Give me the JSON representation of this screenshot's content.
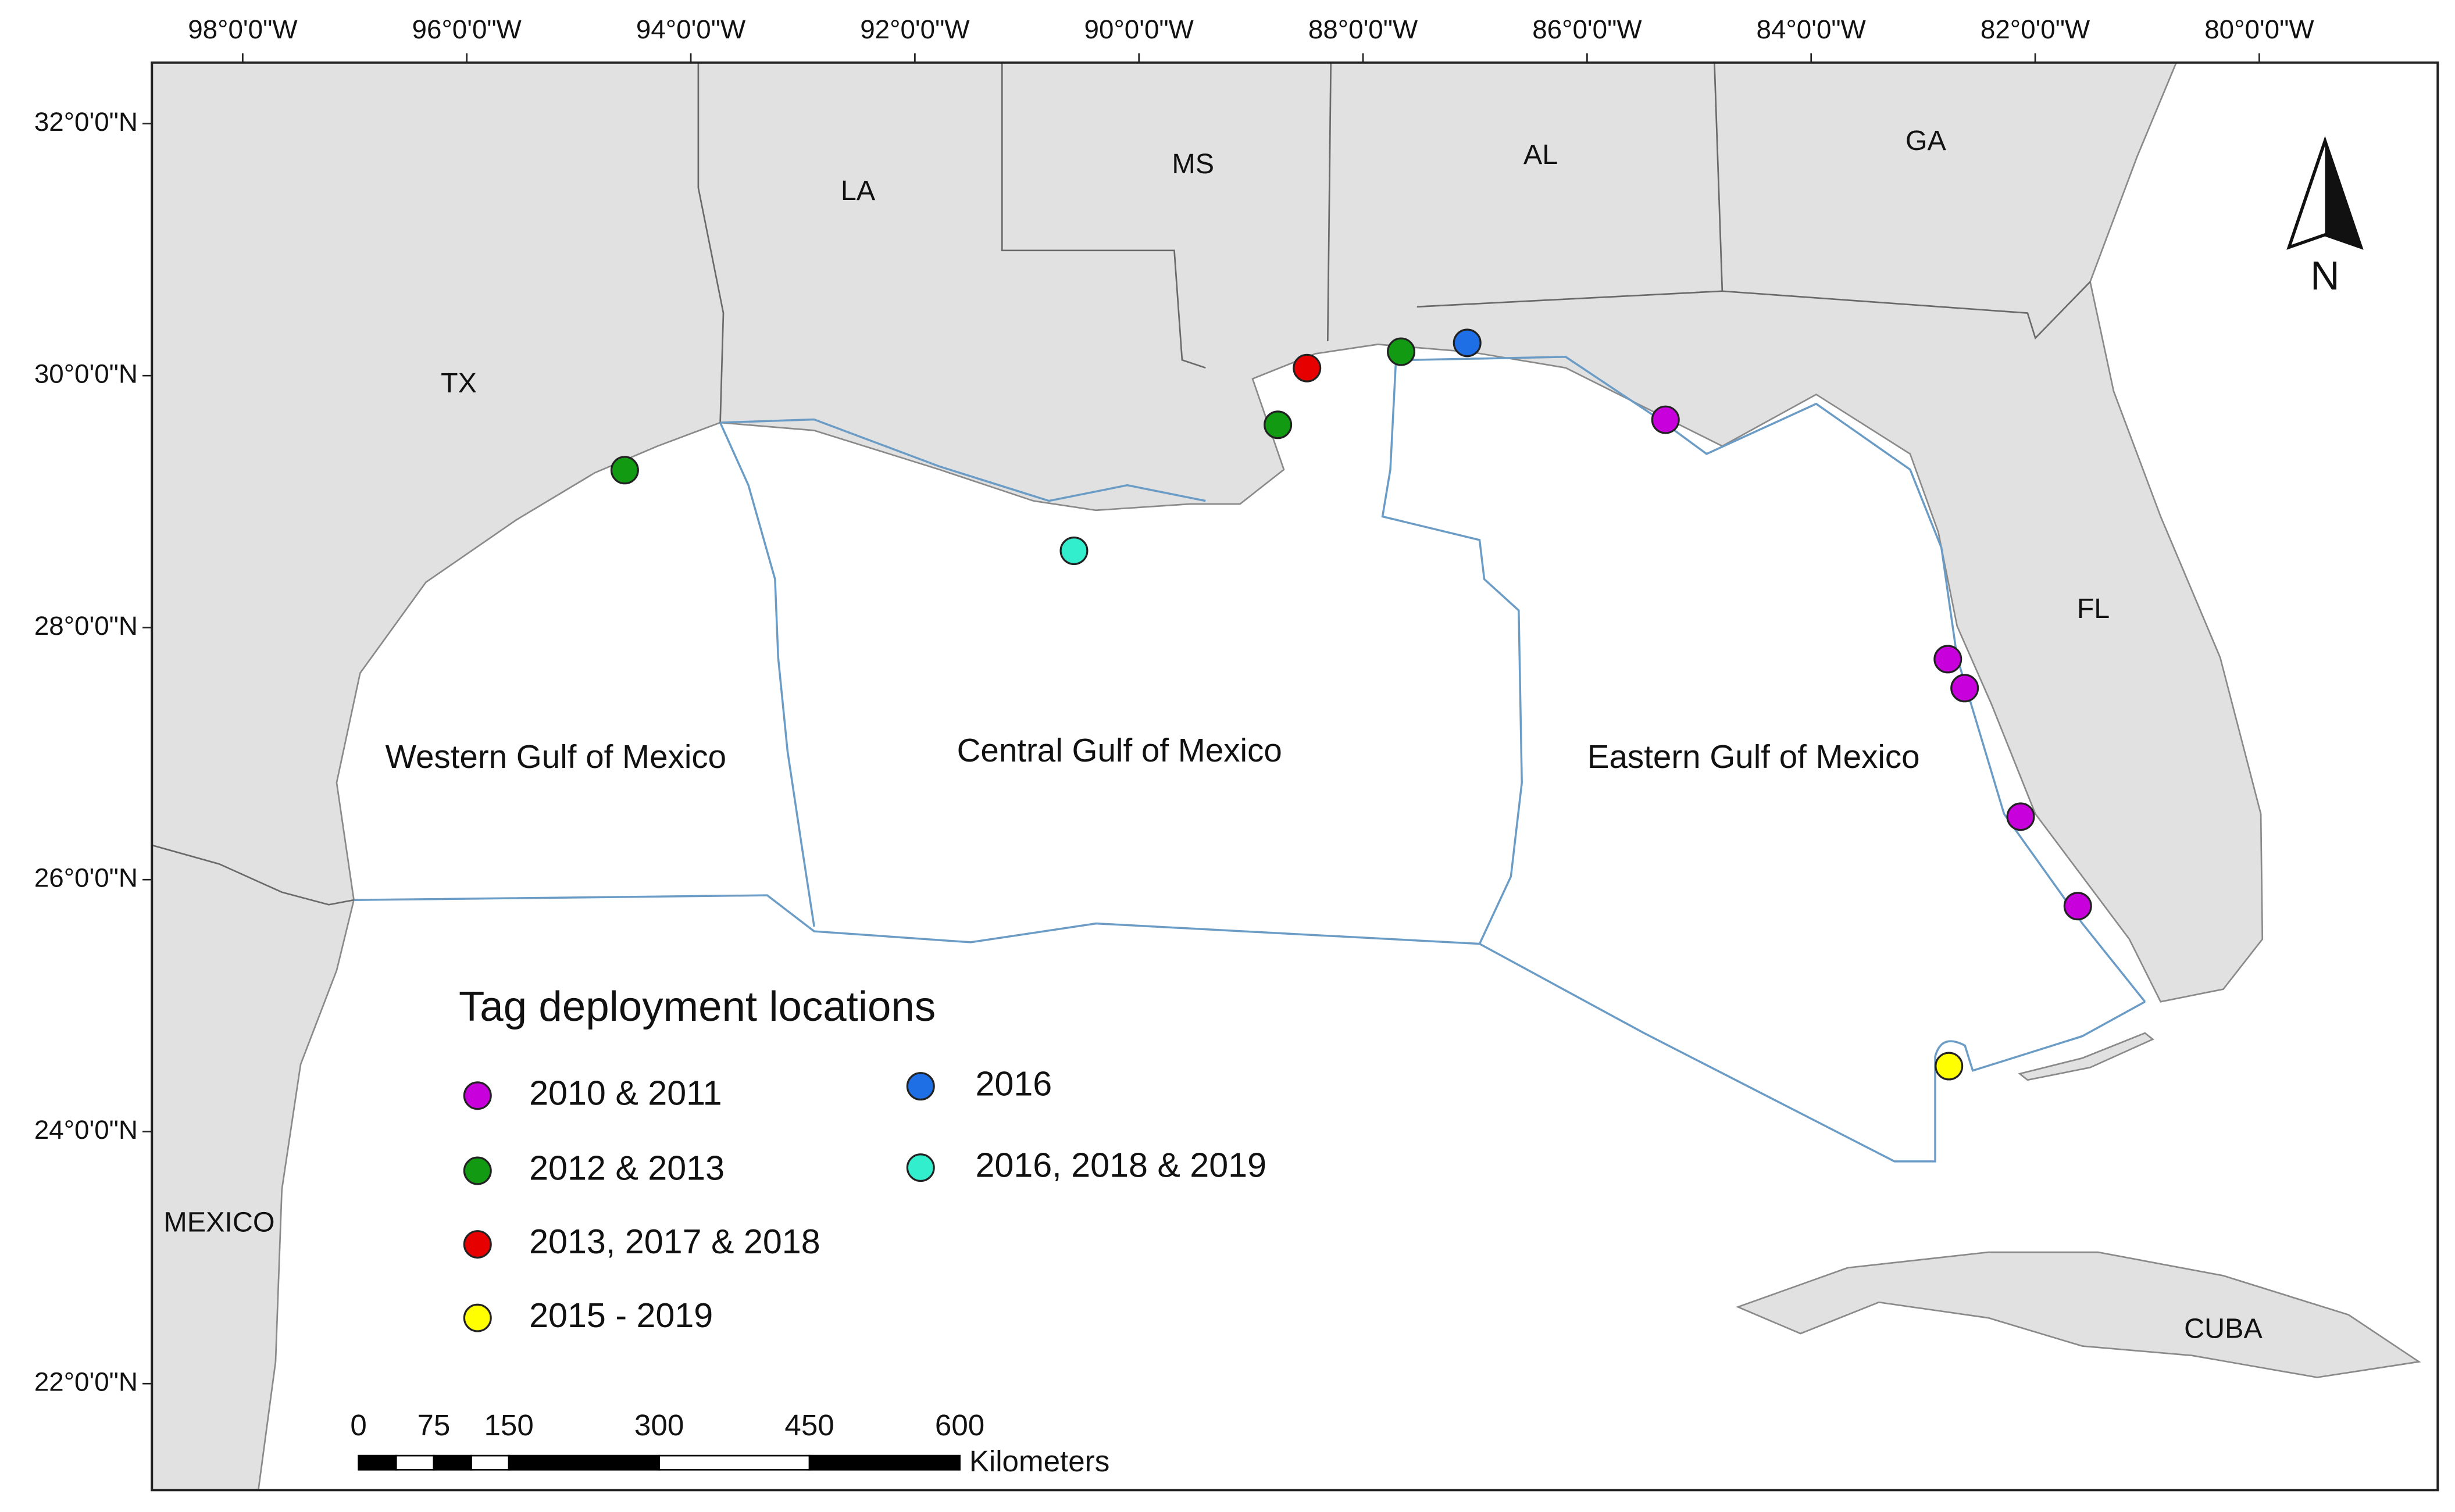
{
  "lon_ticks": [
    {
      "value": -98,
      "label": "98°0'0\"W"
    },
    {
      "value": -96,
      "label": "96°0'0\"W"
    },
    {
      "value": -94,
      "label": "94°0'0\"W"
    },
    {
      "value": -92,
      "label": "92°0'0\"W"
    },
    {
      "value": -90,
      "label": "90°0'0\"W"
    },
    {
      "value": -88,
      "label": "88°0'0\"W"
    },
    {
      "value": -86,
      "label": "86°0'0\"W"
    },
    {
      "value": -84,
      "label": "84°0'0\"W"
    },
    {
      "value": -82,
      "label": "82°0'0\"W"
    },
    {
      "value": -80,
      "label": "80°0'0\"W"
    }
  ],
  "lat_ticks": [
    {
      "value": 32,
      "label": "32°0'0\"N"
    },
    {
      "value": 30,
      "label": "30°0'0\"N"
    },
    {
      "value": 28,
      "label": "28°0'0\"N"
    },
    {
      "value": 26,
      "label": "26°0'0\"N"
    },
    {
      "value": 24,
      "label": "24°0'0\"N"
    },
    {
      "value": 22,
      "label": "22°0'0\"N"
    }
  ],
  "places": {
    "tx": "TX",
    "la": "LA",
    "ms": "MS",
    "al": "AL",
    "ga": "GA",
    "fl": "FL",
    "mexico": "MEXICO",
    "cuba": "CUBA"
  },
  "regions": {
    "western": "Western Gulf of Mexico",
    "central": "Central Gulf of Mexico",
    "eastern": "Eastern Gulf of Mexico"
  },
  "legend": {
    "title": "Tag deployment locations"
  },
  "deployments": [
    {
      "name": "2010 & 2011",
      "color": "#c800dc",
      "points": [
        {
          "lon": -85.3,
          "lat": 29.65
        },
        {
          "lon": -82.78,
          "lat": 27.75
        },
        {
          "lon": -82.63,
          "lat": 27.52
        },
        {
          "lon": -82.13,
          "lat": 26.5
        },
        {
          "lon": -81.62,
          "lat": 25.79
        }
      ]
    },
    {
      "name": "2012 & 2013",
      "color": "#139a13",
      "points": [
        {
          "lon": -94.59,
          "lat": 29.25
        },
        {
          "lon": -88.76,
          "lat": 29.61
        },
        {
          "lon": -87.66,
          "lat": 30.19
        }
      ]
    },
    {
      "name": "2013, 2017 & 2018",
      "color": "#e60000",
      "points": [
        {
          "lon": -88.5,
          "lat": 30.06
        }
      ]
    },
    {
      "name": "2015 - 2019",
      "color": "#ffff00",
      "points": [
        {
          "lon": -82.77,
          "lat": 24.52
        }
      ]
    },
    {
      "name": "2016",
      "color": "#1e6ee6",
      "points": [
        {
          "lon": -87.07,
          "lat": 30.26
        }
      ]
    },
    {
      "name": "2016, 2018 & 2019",
      "color": "#33eecc",
      "points": [
        {
          "lon": -90.58,
          "lat": 28.61
        }
      ]
    }
  ],
  "scale_bar": {
    "labels": [
      0,
      75,
      150,
      300,
      450,
      600
    ],
    "unit": "Kilometers"
  },
  "north": "N"
}
